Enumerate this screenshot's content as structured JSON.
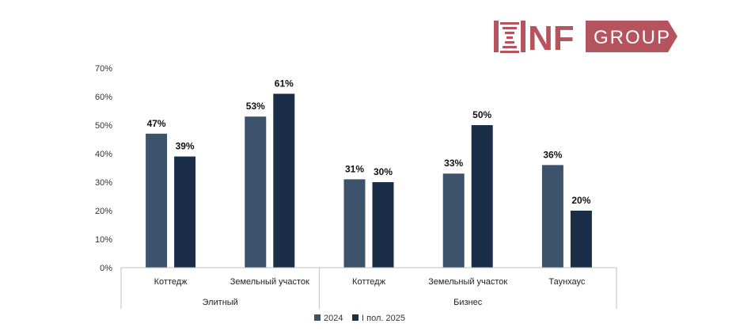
{
  "logo": {
    "mark": "NF",
    "text": "GROUP",
    "color": "#b5545f"
  },
  "chart_data": {
    "type": "bar",
    "groups": [
      {
        "label": "Элитный",
        "categories": [
          "Коттедж",
          "Земельный участок"
        ]
      },
      {
        "label": "Бизнес",
        "categories": [
          "Коттедж",
          "Земельный участок",
          "Таунхаус"
        ]
      }
    ],
    "categories": [
      "Коттедж",
      "Земельный участок",
      "Коттедж",
      "Земельный участок",
      "Таунхаус"
    ],
    "series": [
      {
        "name": "2024",
        "values": [
          47,
          53,
          31,
          33,
          36
        ],
        "labels": [
          "47%",
          "53%",
          "31%",
          "33%",
          "36%"
        ],
        "color": "#3d536b"
      },
      {
        "name": "I пол. 2025",
        "values": [
          39,
          61,
          30,
          50,
          20
        ],
        "labels": [
          "39%",
          "61%",
          "30%",
          "50%",
          "20%"
        ],
        "color": "#1b2e48"
      }
    ],
    "ylim": [
      0,
      70
    ],
    "yticks": [
      "0%",
      "10%",
      "20%",
      "30%",
      "40%",
      "50%",
      "60%",
      "70%"
    ],
    "grid": false,
    "legend": "bottom-center"
  }
}
